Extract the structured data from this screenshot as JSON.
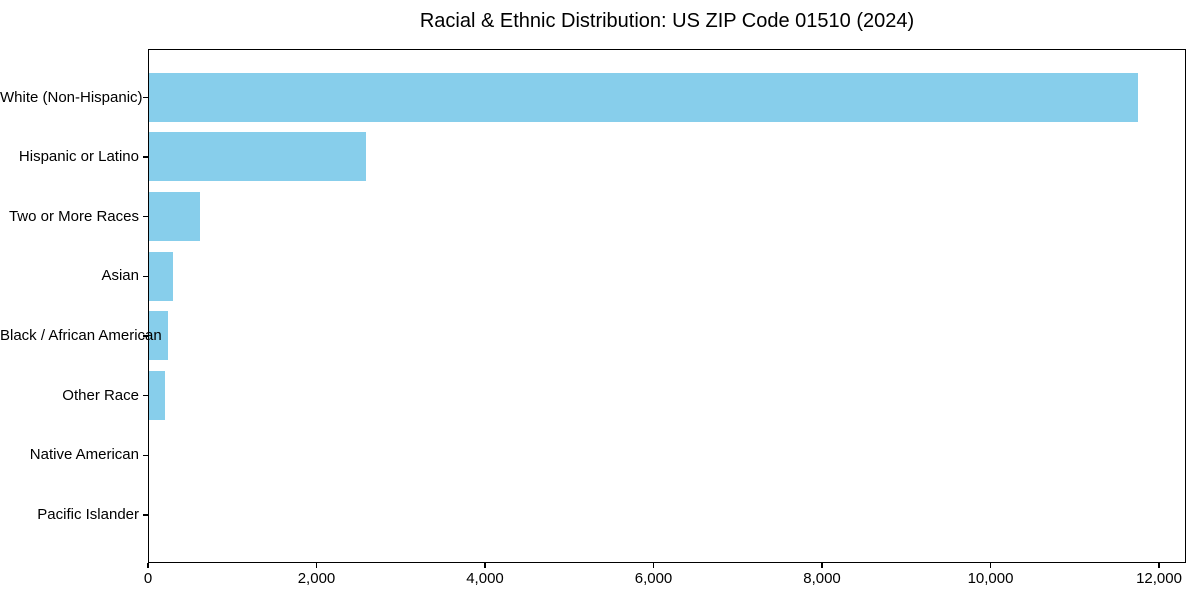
{
  "chart_data": {
    "type": "bar",
    "orientation": "horizontal",
    "title": "Racial & Ethnic Distribution: US ZIP Code 01510 (2024)",
    "categories": [
      "White (Non-Hispanic)",
      "Hispanic or Latino",
      "Two or More Races",
      "Asian",
      "Black / African American",
      "Other Race",
      "Native American",
      "Pacific Islander"
    ],
    "values": [
      11735,
      2580,
      600,
      280,
      225,
      190,
      0,
      0
    ],
    "xlabel": "",
    "ylabel": "",
    "xlim": [
      0,
      12320
    ],
    "xticks": [
      0,
      2000,
      4000,
      6000,
      8000,
      10000,
      12000
    ],
    "xtick_labels": [
      "0",
      "2,000",
      "4,000",
      "6,000",
      "8,000",
      "10,000",
      "12,000"
    ],
    "bar_color": "#87CEEB",
    "spine_color": "#000000",
    "text_color": "#000000",
    "background_color": "#FFFFFF",
    "grid": false,
    "legend": null,
    "frame": true
  }
}
